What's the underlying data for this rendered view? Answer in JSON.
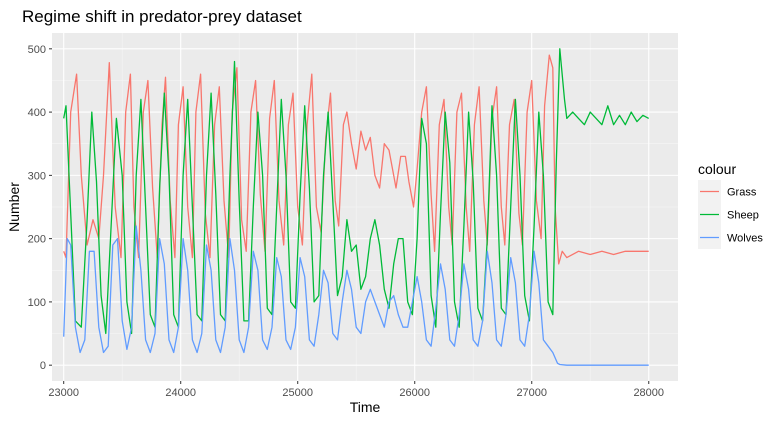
{
  "chart_data": {
    "type": "line",
    "title": "Regime shift in predator-prey dataset",
    "xlabel": "Time",
    "ylabel": "Number",
    "xlim": [
      22900,
      28250
    ],
    "ylim": [
      -25,
      525
    ],
    "x_ticks": [
      23000,
      24000,
      25000,
      26000,
      27000,
      28000
    ],
    "y_ticks": [
      0,
      100,
      200,
      300,
      400,
      500
    ],
    "grid": true,
    "legend": {
      "title": "colour",
      "placement": "right"
    },
    "series": [
      {
        "name": "Grass",
        "color": "#F8766D",
        "x": [
          23000,
          23020,
          23060,
          23110,
          23150,
          23200,
          23250,
          23300,
          23340,
          23390,
          23440,
          23490,
          23530,
          23570,
          23600,
          23640,
          23680,
          23720,
          23760,
          23800,
          23840,
          23870,
          23910,
          23950,
          23980,
          24020,
          24060,
          24100,
          24130,
          24170,
          24210,
          24250,
          24290,
          24330,
          24370,
          24410,
          24440,
          24480,
          24520,
          24560,
          24600,
          24640,
          24680,
          24720,
          24760,
          24800,
          24840,
          24880,
          24920,
          24960,
          25000,
          25040,
          25080,
          25120,
          25160,
          25200,
          25240,
          25280,
          25320,
          25350,
          25390,
          25420,
          25460,
          25500,
          25540,
          25580,
          25620,
          25660,
          25700,
          25740,
          25780,
          25820,
          25840,
          25880,
          25920,
          25950,
          25990,
          26020,
          26060,
          26100,
          26140,
          26170,
          26210,
          26250,
          26290,
          26320,
          26360,
          26400,
          26440,
          26470,
          26510,
          26550,
          26590,
          26620,
          26660,
          26700,
          26740,
          26770,
          26810,
          26850,
          26890,
          26920,
          26960,
          27000,
          27040,
          27080,
          27110,
          27150,
          27180,
          27200,
          27230,
          27260,
          27300,
          27400,
          27500,
          27600,
          27700,
          27800,
          27900,
          28000
        ],
        "y": [
          180,
          170,
          400,
          460,
          300,
          190,
          230,
          200,
          300,
          478,
          250,
          170,
          400,
          460,
          250,
          170,
          400,
          450,
          280,
          170,
          380,
          455,
          260,
          170,
          380,
          440,
          250,
          170,
          400,
          460,
          240,
          170,
          380,
          440,
          260,
          170,
          400,
          470,
          230,
          180,
          400,
          450,
          270,
          180,
          390,
          450,
          260,
          190,
          380,
          430,
          250,
          190,
          380,
          460,
          250,
          210,
          360,
          430,
          260,
          220,
          380,
          400,
          350,
          310,
          370,
          340,
          360,
          300,
          280,
          350,
          340,
          300,
          280,
          330,
          330,
          290,
          250,
          310,
          400,
          440,
          270,
          180,
          380,
          420,
          250,
          190,
          400,
          430,
          250,
          180,
          380,
          440,
          260,
          190,
          390,
          440,
          250,
          190,
          380,
          420,
          240,
          190,
          400,
          450,
          260,
          200,
          410,
          490,
          470,
          250,
          160,
          180,
          170,
          180,
          175,
          180,
          175,
          180,
          180,
          180
        ]
      },
      {
        "name": "Sheep",
        "color": "#00BA38",
        "x": [
          23000,
          23020,
          23060,
          23100,
          23150,
          23200,
          23240,
          23280,
          23320,
          23360,
          23400,
          23450,
          23500,
          23540,
          23580,
          23620,
          23660,
          23700,
          23740,
          23780,
          23820,
          23860,
          23900,
          23940,
          23980,
          24020,
          24060,
          24100,
          24140,
          24180,
          24220,
          24260,
          24300,
          24340,
          24380,
          24420,
          24460,
          24500,
          24540,
          24580,
          24620,
          24660,
          24700,
          24740,
          24780,
          24820,
          24860,
          24900,
          24940,
          24980,
          25020,
          25060,
          25100,
          25140,
          25180,
          25220,
          25260,
          25300,
          25340,
          25380,
          25420,
          25460,
          25500,
          25540,
          25580,
          25620,
          25660,
          25700,
          25740,
          25780,
          25820,
          25860,
          25900,
          25940,
          25980,
          26020,
          26060,
          26100,
          26140,
          26180,
          26220,
          26260,
          26300,
          26340,
          26380,
          26420,
          26460,
          26500,
          26540,
          26580,
          26620,
          26660,
          26700,
          26740,
          26780,
          26820,
          26860,
          26900,
          26940,
          26980,
          27020,
          27060,
          27100,
          27140,
          27180,
          27210,
          27240,
          27280,
          27300,
          27350,
          27400,
          27450,
          27500,
          27550,
          27600,
          27650,
          27700,
          27750,
          27800,
          27850,
          27900,
          27950,
          28000
        ],
        "y": [
          390,
          410,
          240,
          70,
          60,
          230,
          400,
          290,
          110,
          50,
          200,
          390,
          300,
          100,
          50,
          300,
          420,
          250,
          80,
          60,
          280,
          430,
          300,
          80,
          60,
          300,
          420,
          250,
          80,
          70,
          300,
          430,
          270,
          80,
          70,
          300,
          480,
          260,
          70,
          70,
          250,
          400,
          300,
          90,
          80,
          250,
          420,
          300,
          100,
          90,
          270,
          410,
          280,
          100,
          110,
          300,
          400,
          260,
          110,
          140,
          230,
          180,
          190,
          120,
          140,
          200,
          230,
          190,
          120,
          90,
          160,
          200,
          200,
          100,
          80,
          200,
          390,
          350,
          110,
          60,
          240,
          400,
          320,
          100,
          60,
          220,
          400,
          290,
          90,
          70,
          200,
          410,
          300,
          90,
          80,
          250,
          420,
          300,
          110,
          70,
          220,
          400,
          300,
          100,
          80,
          320,
          500,
          420,
          390,
          400,
          390,
          380,
          400,
          390,
          380,
          410,
          380,
          395,
          380,
          400,
          385,
          395,
          390
        ]
      },
      {
        "name": "Wolves",
        "color": "#619CFF",
        "x": [
          23000,
          23030,
          23060,
          23100,
          23140,
          23180,
          23220,
          23260,
          23300,
          23340,
          23380,
          23420,
          23460,
          23500,
          23540,
          23580,
          23620,
          23660,
          23700,
          23740,
          23780,
          23820,
          23860,
          23900,
          23940,
          23980,
          24020,
          24060,
          24100,
          24140,
          24180,
          24220,
          24260,
          24300,
          24340,
          24380,
          24420,
          24460,
          24500,
          24540,
          24580,
          24620,
          24660,
          24700,
          24740,
          24780,
          24820,
          24860,
          24900,
          24940,
          24980,
          25020,
          25060,
          25100,
          25140,
          25180,
          25220,
          25260,
          25300,
          25340,
          25380,
          25420,
          25460,
          25500,
          25540,
          25580,
          25620,
          25660,
          25700,
          25740,
          25780,
          25820,
          25860,
          25900,
          25940,
          25980,
          26020,
          26060,
          26100,
          26140,
          26180,
          26220,
          26260,
          26300,
          26340,
          26380,
          26420,
          26460,
          26500,
          26540,
          26580,
          26620,
          26660,
          26700,
          26740,
          26780,
          26820,
          26860,
          26900,
          26940,
          26980,
          27020,
          27060,
          27100,
          27140,
          27180,
          27220,
          27240,
          27300,
          27400,
          27500,
          27600,
          27700,
          27800,
          27900,
          28000
        ],
        "y": [
          45,
          200,
          190,
          60,
          20,
          40,
          180,
          180,
          60,
          20,
          30,
          190,
          200,
          70,
          25,
          60,
          220,
          150,
          40,
          20,
          50,
          200,
          160,
          40,
          20,
          60,
          200,
          150,
          40,
          20,
          50,
          190,
          150,
          40,
          20,
          60,
          200,
          150,
          40,
          20,
          60,
          180,
          150,
          40,
          25,
          60,
          170,
          140,
          40,
          25,
          60,
          170,
          140,
          40,
          30,
          80,
          150,
          130,
          50,
          40,
          100,
          150,
          120,
          60,
          50,
          100,
          120,
          100,
          80,
          60,
          100,
          110,
          80,
          60,
          60,
          100,
          140,
          100,
          40,
          30,
          90,
          160,
          120,
          40,
          30,
          80,
          160,
          120,
          40,
          30,
          70,
          180,
          130,
          40,
          30,
          80,
          170,
          130,
          40,
          30,
          80,
          180,
          130,
          40,
          30,
          20,
          3,
          1,
          0,
          0,
          0,
          0,
          0,
          0,
          0,
          0
        ]
      }
    ]
  }
}
